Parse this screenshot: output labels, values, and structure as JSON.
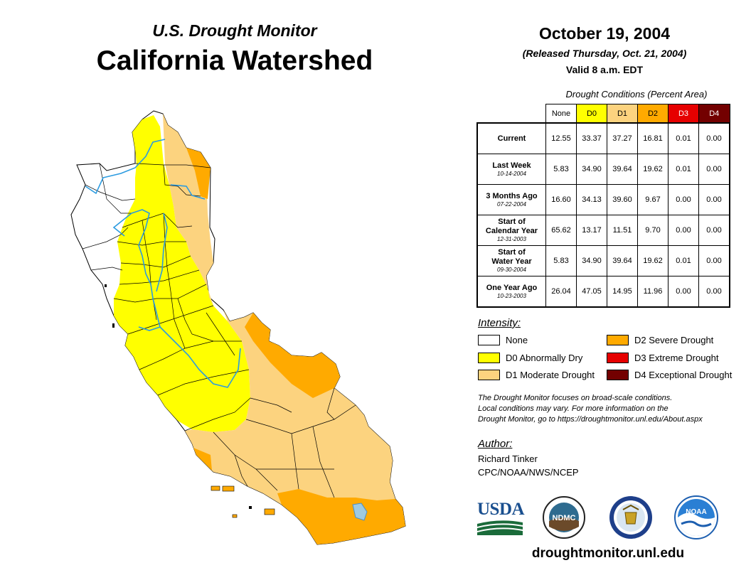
{
  "header": {
    "subtitle": "U.S. Drought Monitor",
    "title": "California Watershed",
    "date": "October 19, 2004",
    "released": "(Released Thursday, Oct. 21, 2004)",
    "valid": "Valid 8 a.m. EDT"
  },
  "table": {
    "caption": "Drought Conditions (Percent Area)",
    "columns": [
      {
        "label": "None",
        "color": "#ffffff",
        "text_color": "#000000"
      },
      {
        "label": "D0",
        "color": "#ffff00",
        "text_color": "#000000"
      },
      {
        "label": "D1",
        "color": "#fcd37f",
        "text_color": "#000000"
      },
      {
        "label": "D2",
        "color": "#ffaa00",
        "text_color": "#000000"
      },
      {
        "label": "D3",
        "color": "#e60000",
        "text_color": "#ffffff"
      },
      {
        "label": "D4",
        "color": "#730000",
        "text_color": "#ffffff"
      }
    ],
    "rows": [
      {
        "lines": [
          "Current"
        ],
        "date": "",
        "values": [
          "12.55",
          "33.37",
          "37.27",
          "16.81",
          "0.01",
          "0.00"
        ]
      },
      {
        "lines": [
          "Last Week"
        ],
        "date": "10-14-2004",
        "values": [
          "5.83",
          "34.90",
          "39.64",
          "19.62",
          "0.01",
          "0.00"
        ]
      },
      {
        "lines": [
          "3 Months Ago"
        ],
        "date": "07-22-2004",
        "values": [
          "16.60",
          "34.13",
          "39.60",
          "9.67",
          "0.00",
          "0.00"
        ]
      },
      {
        "lines": [
          "Start of",
          "Calendar Year"
        ],
        "date": "12-31-2003",
        "values": [
          "65.62",
          "13.17",
          "11.51",
          "9.70",
          "0.00",
          "0.00"
        ]
      },
      {
        "lines": [
          "Start of",
          "Water Year"
        ],
        "date": "09-30-2004",
        "values": [
          "5.83",
          "34.90",
          "39.64",
          "19.62",
          "0.01",
          "0.00"
        ]
      },
      {
        "lines": [
          "One Year Ago"
        ],
        "date": "10-23-2003",
        "values": [
          "26.04",
          "47.05",
          "14.95",
          "11.96",
          "0.00",
          "0.00"
        ]
      }
    ]
  },
  "legend": {
    "title": "Intensity:",
    "items": [
      {
        "label": "None",
        "color": "#ffffff"
      },
      {
        "label": "D0 Abnormally Dry",
        "color": "#ffff00"
      },
      {
        "label": "D1 Moderate Drought",
        "color": "#fcd37f"
      },
      {
        "label": "D2 Severe Drought",
        "color": "#ffaa00"
      },
      {
        "label": "D3 Extreme Drought",
        "color": "#e60000"
      },
      {
        "label": "D4 Exceptional Drought",
        "color": "#730000"
      }
    ]
  },
  "note": {
    "line1": "The Drought Monitor focuses on broad-scale conditions.",
    "line2": "Local conditions may vary. For more information on the",
    "line3": "Drought Monitor, go to https://droughtmonitor.unl.edu/About.aspx"
  },
  "author": {
    "title": "Author:",
    "name": "Richard Tinker",
    "org": "CPC/NOAA/NWS/NCEP"
  },
  "logos": {
    "usda": "USDA",
    "ndmc": "NDMC",
    "noaa": "NOAA"
  },
  "footer": {
    "url": "droughtmonitor.unl.edu"
  }
}
